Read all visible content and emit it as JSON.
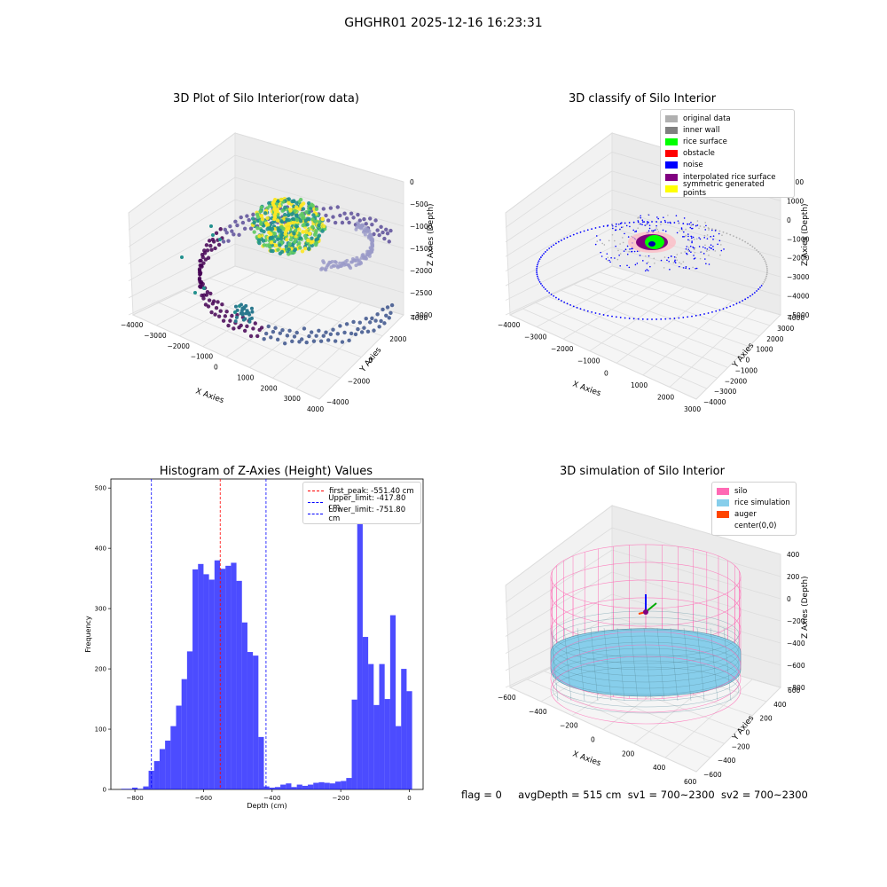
{
  "figure": {
    "suptitle": "GHGHR01 2025-12-16 16:23:31",
    "status": {
      "flag": "flag = 0",
      "avg_depth": "avgDepth = 515 cm",
      "sv1": "sv1 = 700~2300",
      "sv2": "sv2 = 700~2300"
    }
  },
  "chart_data": [
    {
      "type": "scatter",
      "title": "3D Plot of Silo Interior(row data)",
      "xlabel": "X Axies",
      "ylabel": "Y Axies",
      "zlabel": "Z Axies (Depth)",
      "xticks": [
        "−4000",
        "−3000",
        "−2000",
        "−1000",
        "0",
        "1000",
        "2000",
        "3000",
        "4000"
      ],
      "yticks": [
        "−4000",
        "−2000",
        "0",
        "2000",
        "4000"
      ],
      "zticks": [
        "0",
        "−500",
        "−1000",
        "−1500",
        "−2000",
        "−2500",
        "−3000"
      ],
      "colormap": "viridis"
    },
    {
      "type": "scatter",
      "title": "3D classify of Silo Interior",
      "xlabel": "X Axies",
      "ylabel": "Y Axies",
      "zlabel": "Z Axies (Depth)",
      "xticks": [
        "−4000",
        "−3000",
        "−2000",
        "−1000",
        "0",
        "1000",
        "2000",
        "3000"
      ],
      "yticks": [
        "−4000",
        "−3000",
        "−2000",
        "−1000",
        "0",
        "1000",
        "2000",
        "3000",
        "4000"
      ],
      "zticks": [
        "2000",
        "1000",
        "0",
        "−1000",
        "−2000",
        "−3000",
        "−4000",
        "−5000"
      ],
      "legend": [
        {
          "label": "original data",
          "color": "#b0b0b0"
        },
        {
          "label": "inner wall",
          "color": "#808080"
        },
        {
          "label": "rice surface",
          "color": "#00ff00"
        },
        {
          "label": "obstacle",
          "color": "#ff0000"
        },
        {
          "label": "noise",
          "color": "#0000ff"
        },
        {
          "label": "interpolated rice surface",
          "color": "#800080"
        },
        {
          "label": "symmetric generated points",
          "color": "#ffff00"
        }
      ]
    },
    {
      "type": "bar",
      "title": "Histogram of Z-Axies (Height) Values",
      "xlabel": "Depth (cm)",
      "ylabel": "Frequency",
      "xlim": [
        -870,
        40
      ],
      "ylim": [
        0,
        515
      ],
      "xticks": [
        -800,
        -600,
        -400,
        -200,
        0
      ],
      "yticks": [
        0,
        100,
        200,
        300,
        400,
        500
      ],
      "bin_width": 16,
      "bin_start": -840,
      "values": [
        1,
        1,
        3,
        1,
        5,
        31,
        47,
        67,
        81,
        105,
        139,
        183,
        229,
        365,
        374,
        357,
        348,
        380,
        366,
        371,
        376,
        346,
        277,
        228,
        222,
        87,
        5,
        3,
        4,
        8,
        10,
        4,
        8,
        6,
        8,
        11,
        12,
        11,
        10,
        13,
        14,
        19,
        149,
        485,
        253,
        208,
        140,
        208,
        150,
        289,
        105,
        200,
        163
      ],
      "bar_color": "#0000ff",
      "lines": [
        {
          "label": "first_peak: -551.40 cm",
          "x": -551.4,
          "color": "#ff0000"
        },
        {
          "label": "Upper_limit: -417.80 cm",
          "x": -417.8,
          "color": "#0000ff"
        },
        {
          "label": "Lower_limit: -751.80 cm",
          "x": -751.8,
          "color": "#0000ff"
        }
      ]
    },
    {
      "type": "surface",
      "title": "3D simulation of Silo Interior",
      "xlabel": "X Axies",
      "ylabel": "Y Axies",
      "zlabel": "Z Axies (Depth)",
      "xticks": [
        "−600",
        "−400",
        "−200",
        "0",
        "200",
        "400",
        "600"
      ],
      "yticks": [
        "−600",
        "−400",
        "−200",
        "0",
        "200",
        "400",
        "600"
      ],
      "zticks": [
        "400",
        "200",
        "0",
        "−200",
        "−400",
        "−600",
        "−800"
      ],
      "legend": [
        {
          "label": "silo",
          "color": "#ff69b4"
        },
        {
          "label": "rice simulation",
          "color": "#87ceeb"
        },
        {
          "label": "auger",
          "color": "#ff4500"
        },
        {
          "label": "center(0,0)",
          "color": ""
        }
      ]
    }
  ]
}
